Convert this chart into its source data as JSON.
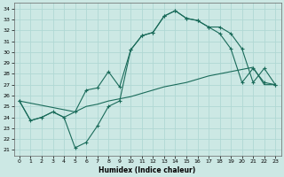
{
  "xlabel": "Humidex (Indice chaleur)",
  "xlim": [
    -0.5,
    23.5
  ],
  "ylim": [
    20.5,
    34.5
  ],
  "yticks": [
    21,
    22,
    23,
    24,
    25,
    26,
    27,
    28,
    29,
    30,
    31,
    32,
    33,
    34
  ],
  "xticks": [
    0,
    1,
    2,
    3,
    4,
    5,
    6,
    7,
    8,
    9,
    10,
    11,
    12,
    13,
    14,
    15,
    16,
    17,
    18,
    19,
    20,
    21,
    22,
    23
  ],
  "bg_color": "#cce8e4",
  "grid_color": "#b0d8d4",
  "line_color": "#1a6b5a",
  "line1_x": [
    0,
    1,
    2,
    3,
    4,
    5,
    6,
    7,
    8,
    9,
    10,
    11,
    12,
    13,
    14,
    15,
    16,
    17,
    18,
    19,
    20,
    21,
    22,
    23
  ],
  "line1_y": [
    25.5,
    23.7,
    24.0,
    24.5,
    24.0,
    21.2,
    21.7,
    23.2,
    25.0,
    25.5,
    30.2,
    31.5,
    31.8,
    33.3,
    33.8,
    33.1,
    32.9,
    32.3,
    31.7,
    30.3,
    27.2,
    28.5,
    27.2,
    27.0
  ],
  "line2_x": [
    0,
    5,
    6,
    7,
    8,
    9,
    10,
    11,
    12,
    13,
    14,
    15,
    16,
    17,
    18,
    19,
    20,
    21,
    22,
    23
  ],
  "line2_y": [
    25.5,
    24.5,
    26.5,
    26.7,
    28.2,
    26.8,
    30.2,
    31.5,
    31.8,
    33.3,
    33.8,
    33.1,
    32.9,
    32.3,
    32.3,
    31.7,
    30.3,
    27.2,
    28.5,
    27.0
  ],
  "line3_x": [
    0,
    1,
    2,
    3,
    4,
    5,
    6,
    7,
    8,
    9,
    10,
    11,
    12,
    13,
    14,
    15,
    16,
    17,
    18,
    19,
    20,
    21,
    22,
    23
  ],
  "line3_y": [
    25.5,
    23.7,
    24.0,
    24.5,
    24.0,
    24.5,
    25.0,
    25.2,
    25.5,
    25.7,
    25.9,
    26.2,
    26.5,
    26.8,
    27.0,
    27.2,
    27.5,
    27.8,
    28.0,
    28.2,
    28.4,
    28.6,
    27.0,
    27.0
  ]
}
